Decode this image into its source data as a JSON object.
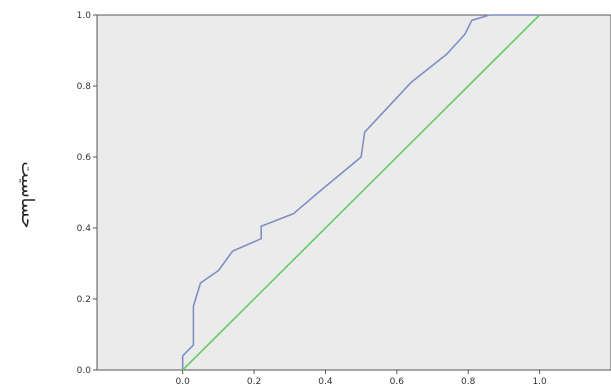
{
  "chart_data": {
    "type": "line",
    "ylabel": "حساسیت",
    "xlabel": "",
    "title": "",
    "xlim": [
      -0.24,
      1.2
    ],
    "ylim": [
      0,
      1
    ],
    "x_ticks": [
      "0.0",
      "0.2",
      "0.4",
      "0.6",
      "0.8",
      "1.0"
    ],
    "y_ticks": [
      "0.0",
      "0.2",
      "0.4",
      "0.6",
      "0.8",
      "1.0"
    ],
    "grid": false,
    "legend": "none",
    "plot_background": "#ebebeb",
    "series": [
      {
        "color": "#7f8fc5",
        "x": [
          0.0,
          0.0,
          0.03,
          0.03,
          0.05,
          0.1,
          0.14,
          0.22,
          0.22,
          0.31,
          0.38,
          0.5,
          0.51,
          0.64,
          0.74,
          0.79,
          0.81,
          0.86,
          1.0
        ],
        "y": [
          0.0,
          0.04,
          0.07,
          0.18,
          0.245,
          0.28,
          0.335,
          0.37,
          0.405,
          0.44,
          0.5,
          0.6,
          0.67,
          0.81,
          0.89,
          0.945,
          0.985,
          1.0,
          1.0
        ]
      },
      {
        "color": "#66cc66",
        "x": [
          0,
          1
        ],
        "y": [
          0,
          1
        ]
      }
    ]
  }
}
